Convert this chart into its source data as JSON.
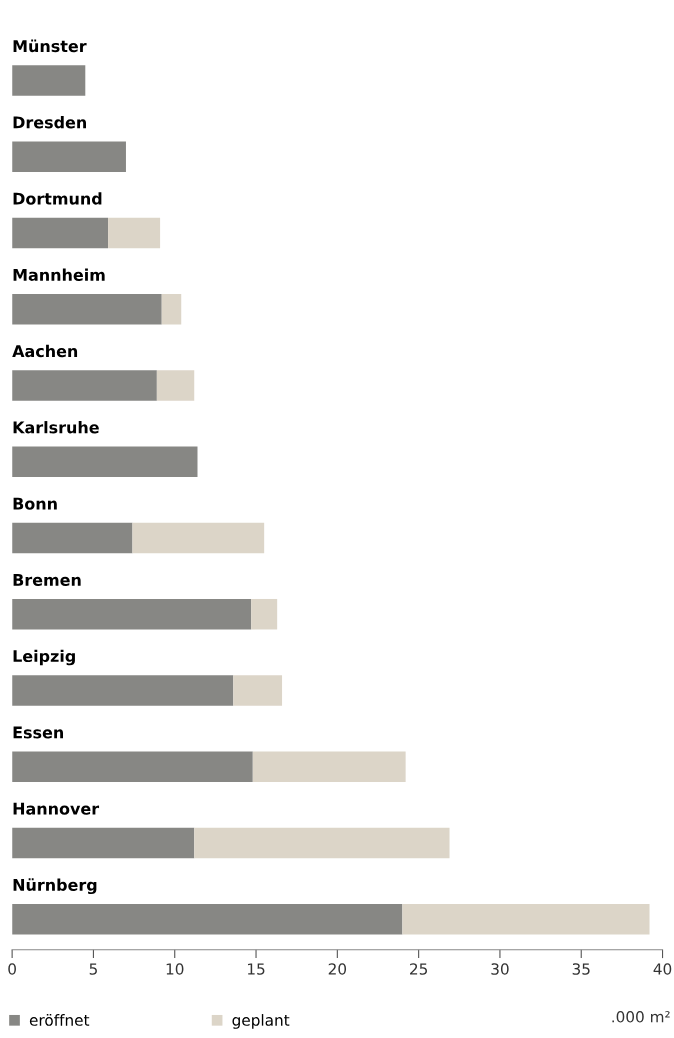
{
  "chart_data": {
    "type": "bar",
    "orientation": "horizontal",
    "stacked": true,
    "xlabel": ".000 m²",
    "categories": [
      "Münster",
      "Dresden",
      "Dortmund",
      "Mannheim",
      "Aachen",
      "Karlsruhe",
      "Bonn",
      "Bremen",
      "Leipzig",
      "Essen",
      "Hannover",
      "Nürnberg"
    ],
    "series": [
      {
        "name": "eröffnet",
        "color": "#878784",
        "values": [
          4.5,
          7.0,
          5.9,
          9.2,
          8.9,
          11.4,
          7.4,
          14.7,
          13.6,
          14.8,
          11.2,
          24.0
        ]
      },
      {
        "name": "geplant",
        "color": "#dcd5c8",
        "values": [
          null,
          null,
          3.2,
          1.2,
          2.3,
          null,
          8.1,
          1.6,
          3.0,
          9.4,
          15.7,
          15.2
        ]
      }
    ],
    "xlim": [
      0,
      40
    ],
    "xticks": [
      0,
      5,
      10,
      15,
      20,
      25,
      30,
      35,
      40
    ],
    "grid": false,
    "legend": "bottom left"
  }
}
